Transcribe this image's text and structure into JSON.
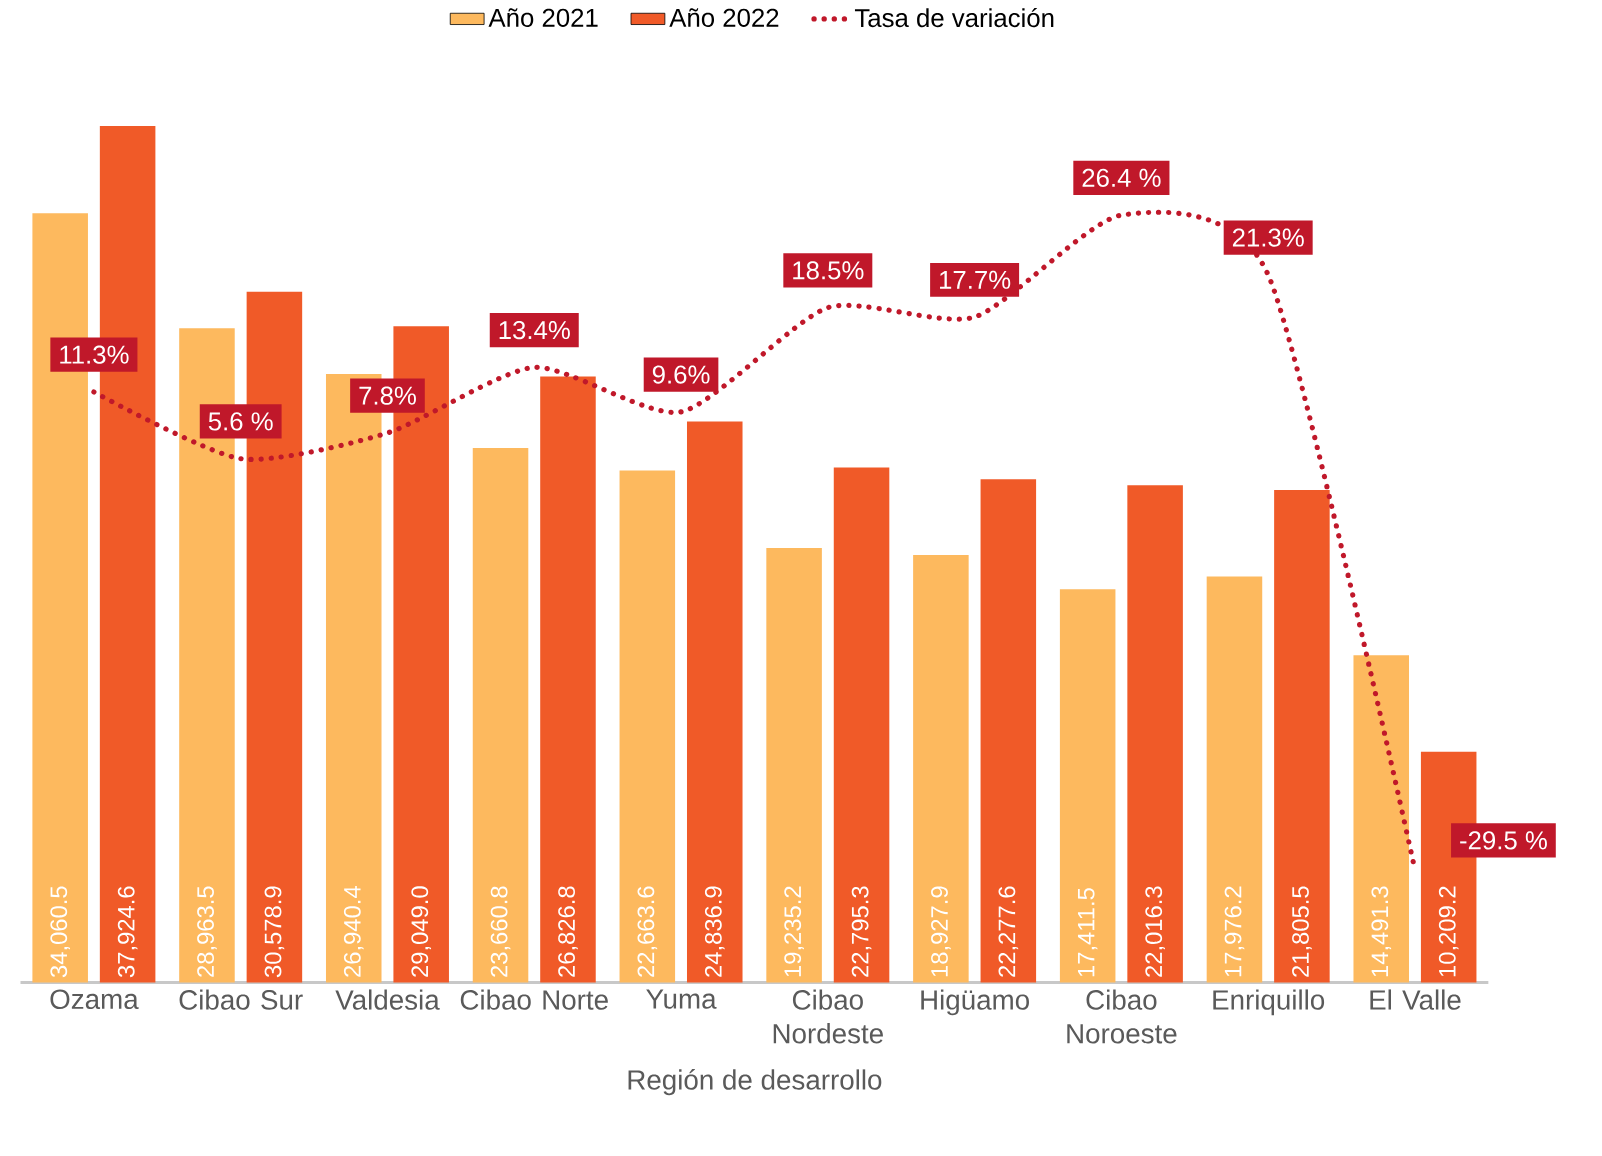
{
  "chart_data": {
    "type": "bar",
    "xlabel": "Región de desarrollo",
    "categories": [
      "Ozama",
      "Cibao Sur",
      "Valdesia",
      "Cibao Norte",
      "Yuma",
      "Cibao Nordeste",
      "Higüamo",
      "Cibao Noroeste",
      "Enriquillo",
      "El Valle"
    ],
    "series": [
      {
        "name": "Año 2021",
        "color": "#fdb95e",
        "values": [
          34060.5,
          28963.5,
          26940.4,
          23660.8,
          22663.6,
          19235.2,
          18927.9,
          17411.5,
          17976.2,
          14491.3
        ],
        "value_labels": [
          "34,060.5",
          "28,963.5",
          "26,940.4",
          "23,660.8",
          "22,663.6",
          "19,235.2",
          "18,927.9",
          "17,411.5",
          "17,976.2",
          "14,491.3"
        ]
      },
      {
        "name": "Año 2022",
        "color": "#f05a28",
        "values": [
          37924.6,
          30578.9,
          29049.0,
          26826.8,
          24836.9,
          22795.3,
          22277.6,
          22016.3,
          21805.5,
          10209.2
        ],
        "value_labels": [
          "37,924.6",
          "30,578.9",
          "29,049.0",
          "26,826.8",
          "24,836.9",
          "22,795.3",
          "22,277.6",
          "22,016.3",
          "21,805.5",
          "10,209.2"
        ]
      },
      {
        "name": "Tasa de variación",
        "type": "line",
        "axis": "y2",
        "line_style": "dotted",
        "color": "#c0182a",
        "values": [
          11.3,
          5.6,
          7.8,
          13.4,
          9.6,
          18.5,
          17.7,
          26.4,
          21.3,
          -29.5
        ],
        "value_labels": [
          "11.3%",
          "5.6 %",
          "7.8%",
          "13.4%",
          "9.6%",
          "18.5%",
          "17.7%",
          "26.4 %",
          "21.3%",
          "-29.5 %"
        ]
      }
    ],
    "tick_labels": "x",
    "legend": "top"
  }
}
